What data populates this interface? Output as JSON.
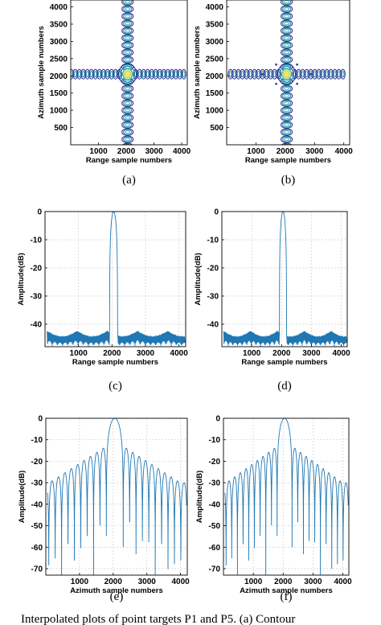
{
  "caption": "Interpolated plots of point targets P1 and P5. (a) Contour",
  "colors": {
    "line": "#1f77b4",
    "grid": "#cfcfcf",
    "contour_outer": "#2b2f8f",
    "contour_mid": "#1e88a8",
    "contour_inner": "#2fb9a6",
    "contour_peak": "#f4e66a"
  },
  "chart_data": [
    {
      "panel": "(a)",
      "type": "contour",
      "xlabel": "Range sample numbers",
      "ylabel": "Azimuth sample numbers",
      "xticks": [
        "1000",
        "2000",
        "3000",
        "4000"
      ],
      "yticks": [
        "500",
        "1000",
        "1500",
        "2000",
        "2500",
        "3000",
        "3500",
        "4000"
      ],
      "xlim": [
        0,
        4200
      ],
      "ylim": [
        0,
        4200
      ],
      "peak": {
        "x": 2048,
        "y": 2048
      }
    },
    {
      "panel": "(b)",
      "type": "contour",
      "xlabel": "Range sample numbers",
      "ylabel": "Azimuth sample numbers",
      "xticks": [
        "1000",
        "2000",
        "3000",
        "4000"
      ],
      "yticks": [
        "500",
        "1000",
        "1500",
        "2000",
        "2500",
        "3000",
        "3500",
        "4000"
      ],
      "xlim": [
        0,
        4200
      ],
      "ylim": [
        0,
        4200
      ],
      "peak": {
        "x": 2048,
        "y": 2048
      }
    },
    {
      "panel": "(c)",
      "type": "line",
      "xlabel": "Range sample numbers",
      "ylabel": "Amplitude(dB)",
      "xticks": [
        "1000",
        "2000",
        "3000",
        "4000"
      ],
      "yticks": [
        "0",
        "-10",
        "-20",
        "-30",
        "-40"
      ],
      "xlim": [
        0,
        4200
      ],
      "ylim": [
        -48,
        0
      ],
      "mainlobe": {
        "center": 2048,
        "peak_db": 0,
        "half_width": 120
      },
      "sidelobe_max_db": -41,
      "sidelobe_floor_db": -48,
      "grid": true
    },
    {
      "panel": "(d)",
      "type": "line",
      "xlabel": "Range sample numbers",
      "ylabel": "Amplitude(dB)",
      "xticks": [
        "1000",
        "2000",
        "3000",
        "4000"
      ],
      "yticks": [
        "0",
        "-10",
        "-20",
        "-30",
        "-40"
      ],
      "xlim": [
        0,
        4200
      ],
      "ylim": [
        -48,
        0
      ],
      "mainlobe": {
        "center": 2048,
        "peak_db": 0,
        "half_width": 120
      },
      "sidelobe_max_db": -41,
      "sidelobe_floor_db": -48,
      "grid": true
    },
    {
      "panel": "(e)",
      "type": "line",
      "xlabel": "Azimuth sample numbers",
      "ylabel": "Amplitude(dB)",
      "xticks": [
        "1000",
        "2000",
        "3000",
        "4000"
      ],
      "yticks": [
        "0",
        "-10",
        "-20",
        "-30",
        "-40",
        "-50",
        "-60",
        "-70"
      ],
      "xlim": [
        0,
        4200
      ],
      "ylim": [
        -73,
        0
      ],
      "mainlobe": {
        "center": 2048,
        "peak_db": 0,
        "half_width": 250
      },
      "sidelobe_first_db": -13,
      "sidelobe_edge_db": -30,
      "grid": true
    },
    {
      "panel": "(f)",
      "type": "line",
      "xlabel": "Azimuth sample numbers",
      "ylabel": "Amplitude(dB)",
      "xticks": [
        "1000",
        "2000",
        "3000",
        "4000"
      ],
      "yticks": [
        "0",
        "-10",
        "-20",
        "-30",
        "-40",
        "-50",
        "-60",
        "-70"
      ],
      "xlim": [
        0,
        4200
      ],
      "ylim": [
        -73,
        0
      ],
      "mainlobe": {
        "center": 2048,
        "peak_db": 0,
        "half_width": 250
      },
      "sidelobe_first_db": -13,
      "sidelobe_edge_db": -30,
      "grid": true
    }
  ]
}
